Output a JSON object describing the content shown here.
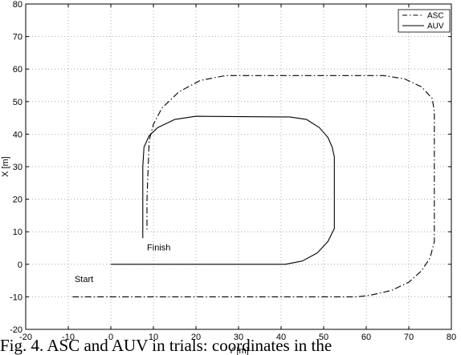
{
  "chart_data": {
    "type": "line",
    "title": "",
    "xlabel": "Y [m]",
    "ylabel": "X [m]",
    "xlim": [
      -20,
      80
    ],
    "ylim": [
      -20,
      80
    ],
    "xticks": [
      -20,
      -10,
      0,
      10,
      20,
      30,
      40,
      50,
      60,
      70,
      80
    ],
    "yticks": [
      -20,
      -10,
      0,
      10,
      20,
      30,
      40,
      50,
      60,
      70,
      80
    ],
    "grid": true,
    "legend_position": "top-right",
    "series": [
      {
        "name": "ASC",
        "style": "dash-dot",
        "color": "#000000",
        "x": [
          -9,
          58,
          61,
          66,
          70,
          73,
          75,
          76,
          76,
          75.5,
          73,
          69,
          64,
          59,
          36,
          27,
          21,
          16,
          12,
          10,
          9,
          8.5,
          8.5
        ],
        "y": [
          -10,
          -10,
          -9.5,
          -8,
          -5.5,
          -2,
          2,
          7,
          47,
          51,
          54.5,
          57,
          58,
          58,
          58,
          58,
          56.5,
          53,
          48,
          43,
          38,
          20,
          10
        ]
      },
      {
        "name": "AUV",
        "style": "solid",
        "color": "#000000",
        "x": [
          0,
          41,
          45,
          48.5,
          51,
          52.5,
          52.5,
          52,
          51,
          49,
          46,
          42,
          40,
          20,
          15,
          11,
          9,
          7.8,
          7.5,
          7.5
        ],
        "y": [
          0,
          0,
          1,
          3.5,
          7,
          11,
          33,
          36,
          39,
          42,
          44.5,
          45.3,
          45.3,
          45.5,
          44.5,
          42,
          39.5,
          36,
          30,
          8
        ]
      }
    ],
    "annotations": [
      {
        "text": "Start",
        "x": -8.5,
        "y": -5.5
      },
      {
        "text": "Finish",
        "x": 8.5,
        "y": 4.2
      }
    ]
  },
  "caption": "Fig. 4. ASC and AUV in trials: coordinates in the"
}
